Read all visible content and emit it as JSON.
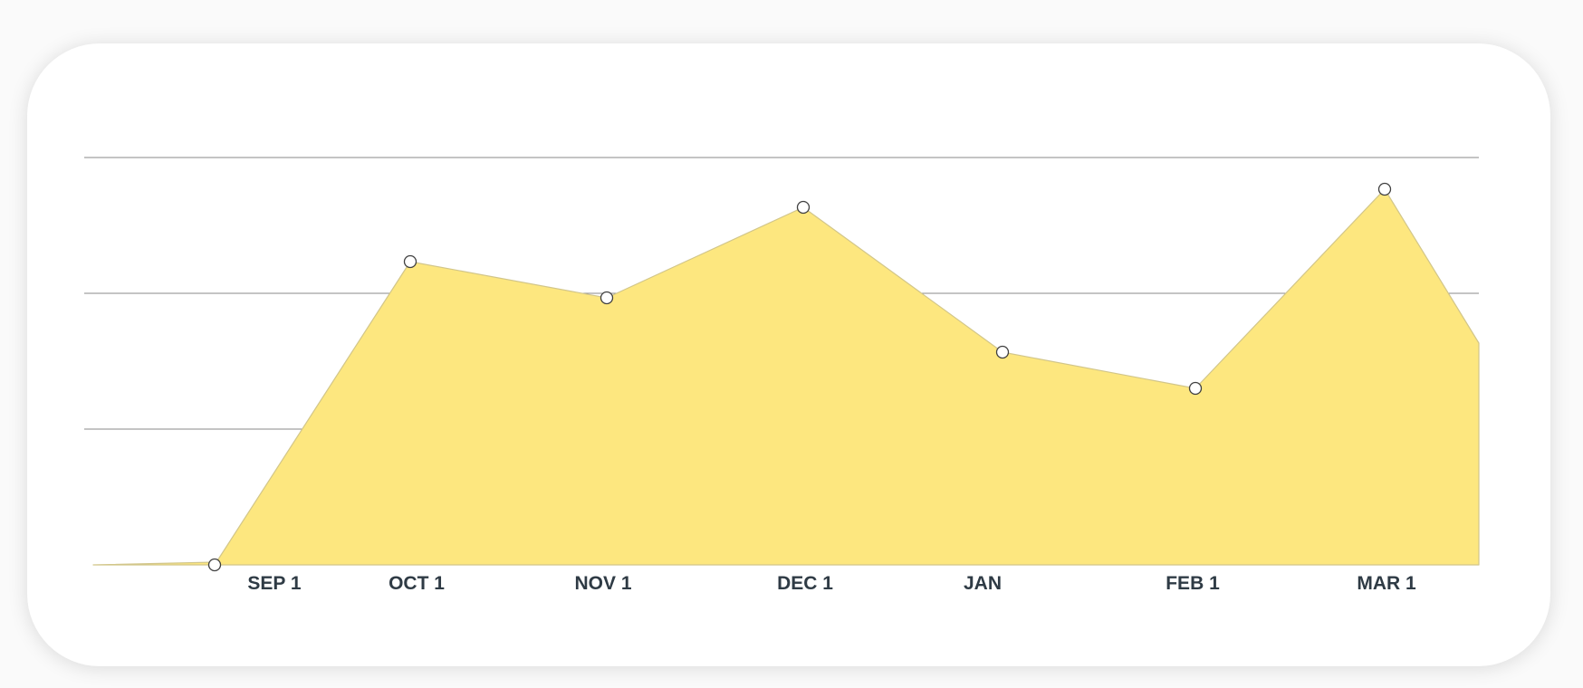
{
  "chart_data": {
    "type": "area",
    "categories": [
      "SEP 1",
      "OCT 1",
      "NOV 1",
      "DEC 1",
      "JAN",
      "FEB 1",
      "MAR 1"
    ],
    "x": [
      "SEP 1",
      "OCT 1",
      "NOV 1",
      "DEC 1",
      "JAN",
      "FEB 1",
      "MAR 1"
    ],
    "values": [
      0,
      67,
      59,
      79,
      47,
      39,
      83
    ],
    "series": [
      {
        "values": [
          0,
          67,
          59,
          79,
          47,
          39,
          83
        ]
      }
    ],
    "ylim": [
      0,
      90
    ],
    "grid": true,
    "legend": "none",
    "title": "",
    "xlabel": "",
    "ylabel": "",
    "colors": {
      "fill": "#fde77f",
      "line": "#d2c68a",
      "marker_fill": "#ffffff",
      "marker_stroke": "#3f3f3f",
      "grid": "#8a8a8a",
      "tick_label": "#2f3b45"
    }
  }
}
